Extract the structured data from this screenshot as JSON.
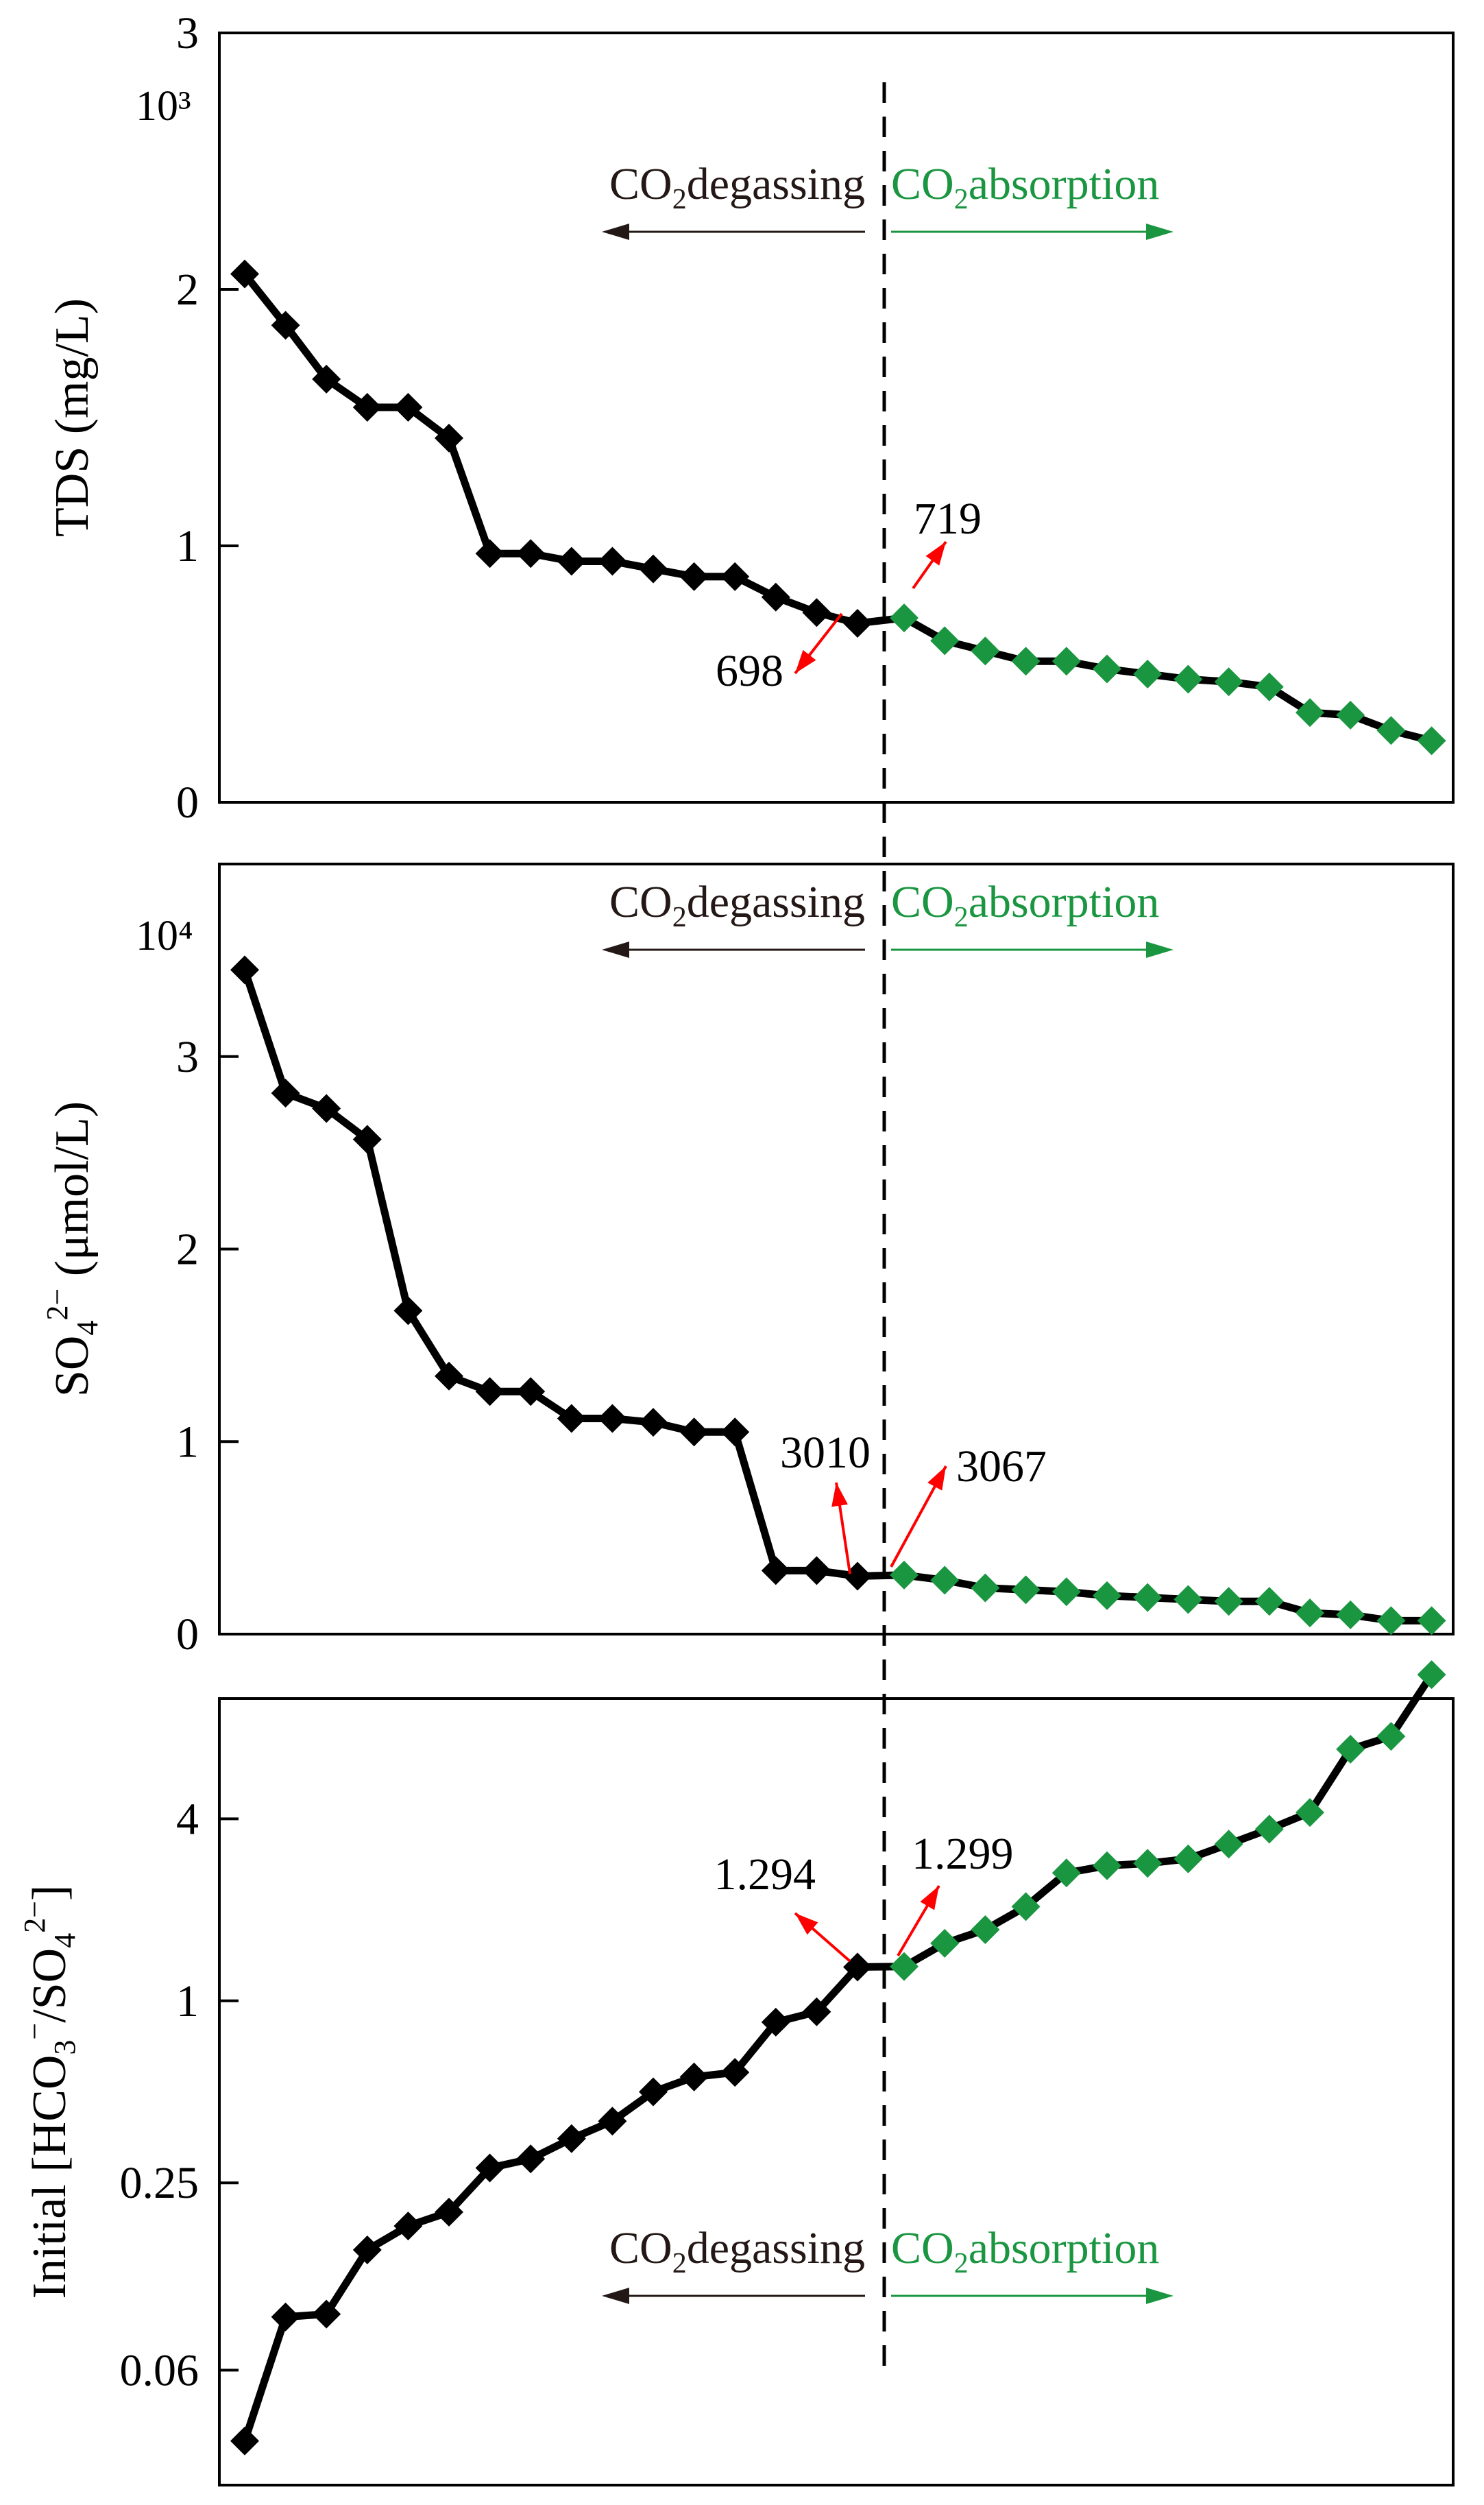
{
  "colors": {
    "degassing": "#000000",
    "absorption": "#1a9641",
    "arrow_callout": "#ff0000",
    "divider": "#000000",
    "degassing_label": "#231815"
  },
  "chart_data": [
    {
      "type": "line",
      "ylabel": "TDS (mg/L)",
      "y_multiplier": "10³",
      "ylim": [
        0,
        3
      ],
      "yticks": [
        "0",
        "1",
        "2",
        "3"
      ],
      "series": [
        {
          "values": [
            2.06,
            1.86,
            1.65,
            1.54,
            1.54,
            1.42,
            0.97,
            0.97,
            0.94,
            0.94,
            0.91,
            0.88,
            0.88,
            0.8,
            0.74,
            0.698
          ]
        },
        {
          "values": [
            0.719,
            0.63,
            0.59,
            0.55,
            0.55,
            0.52,
            0.5,
            0.48,
            0.47,
            0.45,
            0.35,
            0.34,
            0.28,
            0.24
          ]
        }
      ],
      "annotations": [
        {
          "label": "698",
          "point": "left"
        },
        {
          "label": "719",
          "point": "right"
        }
      ],
      "regions": {
        "left": "CO",
        "left_sub": "2",
        "left_rest": "degassing",
        "right": "CO",
        "right_sub": "2",
        "right_rest": "absorption"
      }
    },
    {
      "type": "line",
      "ylabel": "SO",
      "ylabel_sub": "4",
      "ylabel_sup": "2−",
      "ylabel_rest": " (μmol/L)",
      "y_multiplier": "10⁴",
      "ylim": [
        0,
        4
      ],
      "yticks": [
        "0",
        "1",
        "2",
        "3"
      ],
      "series": [
        {
          "values": [
            3.45,
            2.81,
            2.73,
            2.57,
            1.68,
            1.34,
            1.26,
            1.26,
            1.12,
            1.12,
            1.1,
            1.05,
            1.05,
            0.33,
            0.33,
            0.301
          ]
        },
        {
          "values": [
            0.3067,
            0.28,
            0.24,
            0.23,
            0.22,
            0.2,
            0.19,
            0.18,
            0.17,
            0.17,
            0.11,
            0.1,
            0.07,
            0.07
          ]
        }
      ],
      "annotations": [
        {
          "label": "3010",
          "point": "left"
        },
        {
          "label": "3067",
          "point": "right"
        }
      ],
      "regions": {
        "left": "CO",
        "left_sub": "2",
        "left_rest": "degassing",
        "right": "CO",
        "right_sub": "2",
        "right_rest": "absorption"
      }
    },
    {
      "type": "line",
      "ylabel_parts": [
        "Initial [HCO",
        "3",
        "−",
        "/SO",
        "4",
        "2−",
        "]"
      ],
      "yscale": "log",
      "ylim": [
        0.025,
        10
      ],
      "yticks": [
        {
          "value": 0.06,
          "label": "0.06"
        },
        {
          "value": 0.25,
          "label": "0.25"
        },
        {
          "value": 1,
          "label": "1"
        },
        {
          "value": 4,
          "label": "4"
        }
      ],
      "series": [
        {
          "values": [
            0.035,
            0.09,
            0.092,
            0.15,
            0.18,
            0.2,
            0.28,
            0.3,
            0.35,
            0.4,
            0.5,
            0.56,
            0.58,
            0.85,
            0.92,
            1.294
          ]
        },
        {
          "values": [
            1.299,
            1.55,
            1.72,
            2.05,
            2.65,
            2.8,
            2.85,
            2.95,
            3.3,
            3.7,
            4.2,
            6.8,
            7.5,
            12.0
          ]
        }
      ],
      "annotations": [
        {
          "label": "1.294",
          "point": "left"
        },
        {
          "label": "1.299",
          "point": "right"
        }
      ],
      "regions": {
        "left": "CO",
        "left_sub": "2",
        "left_rest": "degassing",
        "right": "CO",
        "right_sub": "2",
        "right_rest": "absorption"
      }
    }
  ]
}
